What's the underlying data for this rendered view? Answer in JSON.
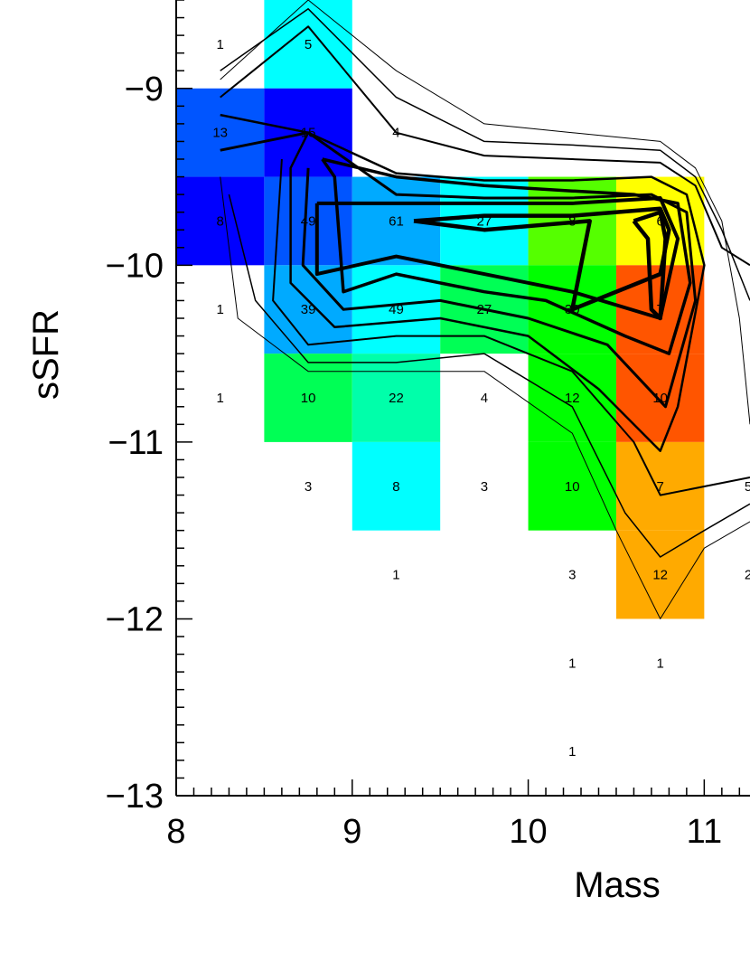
{
  "chart_data": {
    "type": "heatmap",
    "xlabel": "Mass",
    "ylabel": "sSFR",
    "x_ticks": [
      "8",
      "9",
      "10",
      "11"
    ],
    "y_ticks": [
      "−9",
      "−10",
      "−11",
      "−12",
      "−13"
    ],
    "xlim": [
      8,
      11.26
    ],
    "ylim": [
      -13,
      -8.5
    ],
    "bin_size": 0.5,
    "cells": [
      {
        "x": 8.25,
        "y": -8.75,
        "count": "1",
        "color": null
      },
      {
        "x": 8.75,
        "y": -8.75,
        "count": "5",
        "color": "#00ffff"
      },
      {
        "x": 8.25,
        "y": -9.25,
        "count": "13",
        "color": "#0055ff"
      },
      {
        "x": 8.75,
        "y": -9.25,
        "count": "15",
        "color": "#0000ff"
      },
      {
        "x": 9.25,
        "y": -9.25,
        "count": "4",
        "color": null
      },
      {
        "x": 8.25,
        "y": -9.75,
        "count": "8",
        "color": "#0000ff"
      },
      {
        "x": 8.75,
        "y": -9.75,
        "count": "49",
        "color": "#0055ff"
      },
      {
        "x": 9.25,
        "y": -9.75,
        "count": "61",
        "color": "#00aaff"
      },
      {
        "x": 9.75,
        "y": -9.75,
        "count": "27",
        "color": "#00ffff"
      },
      {
        "x": 10.25,
        "y": -9.75,
        "count": "8",
        "color": "#55ff00"
      },
      {
        "x": 10.75,
        "y": -9.75,
        "count": "6",
        "color": "#ffff00"
      },
      {
        "x": 8.25,
        "y": -10.25,
        "count": "1",
        "color": null
      },
      {
        "x": 8.75,
        "y": -10.25,
        "count": "39",
        "color": "#00aaff"
      },
      {
        "x": 9.25,
        "y": -10.25,
        "count": "49",
        "color": "#00ffff"
      },
      {
        "x": 9.75,
        "y": -10.25,
        "count": "27",
        "color": "#00ff55"
      },
      {
        "x": 10.25,
        "y": -10.25,
        "count": "30",
        "color": "#00ff00"
      },
      {
        "x": 10.75,
        "y": -10.25,
        "count": "7",
        "color": "#ff5500"
      },
      {
        "x": 8.25,
        "y": -10.75,
        "count": "1",
        "color": null
      },
      {
        "x": 8.75,
        "y": -10.75,
        "count": "10",
        "color": "#00ff55"
      },
      {
        "x": 9.25,
        "y": -10.75,
        "count": "22",
        "color": "#00ffaa"
      },
      {
        "x": 9.75,
        "y": -10.75,
        "count": "4",
        "color": null
      },
      {
        "x": 10.25,
        "y": -10.75,
        "count": "12",
        "color": "#00ff00"
      },
      {
        "x": 10.75,
        "y": -10.75,
        "count": "10",
        "color": "#ff5500"
      },
      {
        "x": 8.75,
        "y": -11.25,
        "count": "3",
        "color": null
      },
      {
        "x": 9.25,
        "y": -11.25,
        "count": "8",
        "color": "#00ffff"
      },
      {
        "x": 9.75,
        "y": -11.25,
        "count": "3",
        "color": null
      },
      {
        "x": 10.25,
        "y": -11.25,
        "count": "10",
        "color": "#00ff00"
      },
      {
        "x": 10.75,
        "y": -11.25,
        "count": "7",
        "color": "#ffaa00"
      },
      {
        "x": 11.25,
        "y": -11.25,
        "count": "5",
        "color": null
      },
      {
        "x": 9.25,
        "y": -11.75,
        "count": "1",
        "color": null
      },
      {
        "x": 10.25,
        "y": -11.75,
        "count": "3",
        "color": null
      },
      {
        "x": 10.75,
        "y": -11.75,
        "count": "12",
        "color": "#ffaa00"
      },
      {
        "x": 11.25,
        "y": -11.75,
        "count": "2",
        "color": null
      },
      {
        "x": 10.25,
        "y": -12.25,
        "count": "1",
        "color": null
      },
      {
        "x": 10.75,
        "y": -12.25,
        "count": "1",
        "color": null
      },
      {
        "x": 10.25,
        "y": -12.75,
        "count": "1",
        "color": null
      }
    ],
    "contours": [
      {
        "width": 1,
        "points": [
          [
            8.25,
            -8.95
          ],
          [
            8.75,
            -8.5
          ],
          [
            9.25,
            -8.9
          ],
          [
            9.75,
            -9.2
          ],
          [
            10.25,
            -9.25
          ],
          [
            10.75,
            -9.3
          ],
          [
            10.95,
            -9.45
          ],
          [
            11.1,
            -9.75
          ],
          [
            11.2,
            -10.3
          ],
          [
            11.26,
            -10.9
          ]
        ]
      },
      {
        "width": 1,
        "points": [
          [
            8.25,
            -9.5
          ],
          [
            8.35,
            -10.3
          ],
          [
            8.75,
            -10.6
          ],
          [
            9.25,
            -10.6
          ],
          [
            9.75,
            -10.6
          ],
          [
            10.25,
            -10.95
          ],
          [
            10.5,
            -11.5
          ],
          [
            10.75,
            -12.0
          ],
          [
            11.0,
            -11.6
          ],
          [
            11.26,
            -11.45
          ]
        ]
      },
      {
        "width": 1.5,
        "points": [
          [
            8.25,
            -8.9
          ],
          [
            8.75,
            -8.55
          ],
          [
            9.25,
            -9.05
          ],
          [
            9.75,
            -9.3
          ],
          [
            10.25,
            -9.32
          ],
          [
            10.75,
            -9.35
          ],
          [
            10.95,
            -9.5
          ],
          [
            11.1,
            -9.8
          ],
          [
            11.26,
            -10.2
          ]
        ]
      },
      {
        "width": 1.5,
        "points": [
          [
            8.3,
            -9.6
          ],
          [
            8.45,
            -10.2
          ],
          [
            8.75,
            -10.55
          ],
          [
            9.25,
            -10.55
          ],
          [
            9.75,
            -10.5
          ],
          [
            10.25,
            -10.8
          ],
          [
            10.55,
            -11.4
          ],
          [
            10.75,
            -11.65
          ],
          [
            11.0,
            -11.5
          ],
          [
            11.26,
            -11.35
          ]
        ]
      },
      {
        "width": 2,
        "points": [
          [
            8.25,
            -9.05
          ],
          [
            8.75,
            -8.65
          ],
          [
            9.25,
            -9.25
          ],
          [
            9.75,
            -9.38
          ],
          [
            10.25,
            -9.4
          ],
          [
            10.75,
            -9.42
          ],
          [
            10.95,
            -9.55
          ],
          [
            11.1,
            -9.9
          ],
          [
            11.26,
            -10.0
          ]
        ]
      },
      {
        "width": 2,
        "points": [
          [
            8.6,
            -9.4
          ],
          [
            8.55,
            -10.2
          ],
          [
            8.75,
            -10.45
          ],
          [
            9.25,
            -10.4
          ],
          [
            9.75,
            -10.4
          ],
          [
            10.25,
            -10.6
          ],
          [
            10.6,
            -11.0
          ],
          [
            10.75,
            -11.3
          ],
          [
            11.26,
            -11.2
          ]
        ]
      },
      {
        "width": 2.5,
        "points": [
          [
            8.25,
            -9.15
          ],
          [
            8.75,
            -9.25
          ],
          [
            9.25,
            -9.48
          ],
          [
            9.75,
            -9.52
          ],
          [
            10.25,
            -9.52
          ],
          [
            10.7,
            -9.5
          ],
          [
            10.9,
            -9.6
          ],
          [
            11.0,
            -10.0
          ],
          [
            10.85,
            -10.8
          ],
          [
            10.75,
            -11.05
          ],
          [
            10.4,
            -10.7
          ],
          [
            10.0,
            -10.4
          ],
          [
            9.5,
            -10.3
          ],
          [
            8.9,
            -10.35
          ],
          [
            8.65,
            -10.1
          ],
          [
            8.65,
            -9.45
          ],
          [
            8.75,
            -9.25
          ]
        ]
      },
      {
        "width": 3,
        "points": [
          [
            8.25,
            -9.35
          ],
          [
            8.75,
            -9.25
          ],
          [
            9.25,
            -9.6
          ],
          [
            9.75,
            -9.62
          ],
          [
            10.25,
            -9.62
          ],
          [
            10.7,
            -9.6
          ],
          [
            10.9,
            -9.7
          ],
          [
            10.95,
            -10.2
          ],
          [
            10.78,
            -10.8
          ],
          [
            10.45,
            -10.45
          ],
          [
            10.0,
            -10.3
          ],
          [
            9.5,
            -10.2
          ],
          [
            8.95,
            -10.25
          ],
          [
            8.72,
            -10.0
          ],
          [
            8.75,
            -9.45
          ]
        ]
      },
      {
        "width": 3.5,
        "points": [
          [
            8.83,
            -9.4
          ],
          [
            9.25,
            -9.5
          ],
          [
            9.75,
            -9.55
          ],
          [
            10.25,
            -9.58
          ],
          [
            10.6,
            -9.6
          ],
          [
            10.85,
            -9.65
          ],
          [
            10.92,
            -10.1
          ],
          [
            10.8,
            -10.5
          ],
          [
            10.55,
            -10.4
          ],
          [
            10.1,
            -10.2
          ],
          [
            9.75,
            -10.15
          ],
          [
            9.25,
            -10.05
          ],
          [
            8.95,
            -10.15
          ],
          [
            8.9,
            -9.5
          ],
          [
            8.83,
            -9.4
          ]
        ]
      },
      {
        "width": 4,
        "points": [
          [
            8.8,
            -9.65
          ],
          [
            9.25,
            -9.65
          ],
          [
            9.75,
            -9.65
          ],
          [
            10.25,
            -9.65
          ],
          [
            10.75,
            -9.62
          ],
          [
            10.85,
            -9.85
          ],
          [
            10.75,
            -10.3
          ],
          [
            10.25,
            -10.15
          ],
          [
            9.75,
            -10.05
          ],
          [
            9.25,
            -9.95
          ],
          [
            8.8,
            -10.05
          ],
          [
            8.8,
            -9.65
          ]
        ]
      },
      {
        "width": 4.5,
        "points": [
          [
            9.35,
            -9.75
          ],
          [
            9.75,
            -9.72
          ],
          [
            10.25,
            -9.72
          ],
          [
            10.75,
            -9.68
          ],
          [
            10.8,
            -9.8
          ],
          [
            10.75,
            -10.05
          ],
          [
            10.25,
            -10.25
          ],
          [
            10.35,
            -9.75
          ],
          [
            9.75,
            -9.8
          ],
          [
            9.35,
            -9.75
          ]
        ]
      },
      {
        "width": 4.5,
        "points": [
          [
            10.6,
            -9.75
          ],
          [
            10.75,
            -9.7
          ],
          [
            10.78,
            -9.85
          ],
          [
            10.75,
            -10.3
          ],
          [
            10.7,
            -10.25
          ],
          [
            10.68,
            -9.85
          ],
          [
            10.6,
            -9.75
          ]
        ]
      }
    ]
  }
}
